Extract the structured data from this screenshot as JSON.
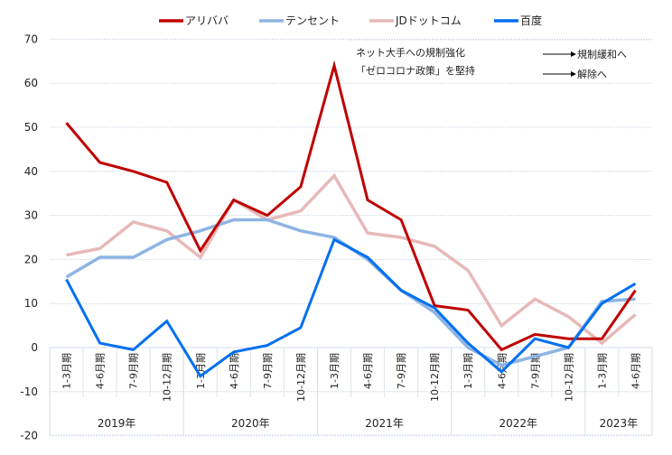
{
  "chart_data": {
    "type": "line",
    "title": "",
    "xlabel": "",
    "ylabel": "",
    "ylim": [
      -20,
      70
    ],
    "yticks": [
      70,
      60,
      50,
      40,
      30,
      20,
      10,
      0,
      -10,
      -20
    ],
    "grid": true,
    "legend_position": "top",
    "categories": [
      "1-3月期",
      "4-6月期",
      "7-9月期",
      "10-12月期",
      "1-3月期",
      "4-6月期",
      "7-9月期",
      "10-12月期",
      "1-3月期",
      "4-6月期",
      "7-9月期",
      "10-12月期",
      "1-3月期",
      "4-6月期",
      "7-9月期",
      "10-12月期",
      "1-3月期",
      "4-6月期"
    ],
    "year_groups": [
      {
        "label": "2019年",
        "start": 0,
        "count": 4
      },
      {
        "label": "2020年",
        "start": 4,
        "count": 4
      },
      {
        "label": "2021年",
        "start": 8,
        "count": 4
      },
      {
        "label": "2022年",
        "start": 12,
        "count": 4
      },
      {
        "label": "2023年",
        "start": 16,
        "count": 2
      }
    ],
    "series": [
      {
        "name": "アリババ",
        "color": "#C00000",
        "values": [
          51,
          42,
          40,
          37.5,
          22,
          33.5,
          30,
          36.5,
          64,
          33.5,
          29,
          9.5,
          8.5,
          -0.5,
          3,
          2,
          2,
          13
        ]
      },
      {
        "name": "テンセント",
        "color": "#8EB4E3",
        "values": [
          16,
          20.5,
          20.5,
          24.5,
          26.5,
          29,
          29,
          26.5,
          25,
          20,
          13,
          8,
          0,
          -4,
          -2,
          0,
          10.5,
          11
        ]
      },
      {
        "name": "JDドットコム",
        "color": "#E6B9B8",
        "values": [
          21,
          22.5,
          28.5,
          26.5,
          20.5,
          33.5,
          29,
          31,
          39,
          26,
          25,
          23,
          17.5,
          5,
          11,
          7,
          1,
          7.5
        ]
      },
      {
        "name": "百度",
        "color": "#0070F0",
        "values": [
          15.5,
          1,
          -0.5,
          6,
          -6.5,
          -1,
          0.5,
          4.5,
          24.5,
          20.5,
          13,
          9,
          1,
          -5.5,
          2,
          0,
          10,
          14.5
        ]
      }
    ],
    "annotations": [
      {
        "text": "ネット大手への規制強化",
        "arrow_to": "規制緩和へ"
      },
      {
        "text": "「ゼロコロナ政策」を堅持",
        "arrow_to": "解除へ"
      }
    ]
  }
}
